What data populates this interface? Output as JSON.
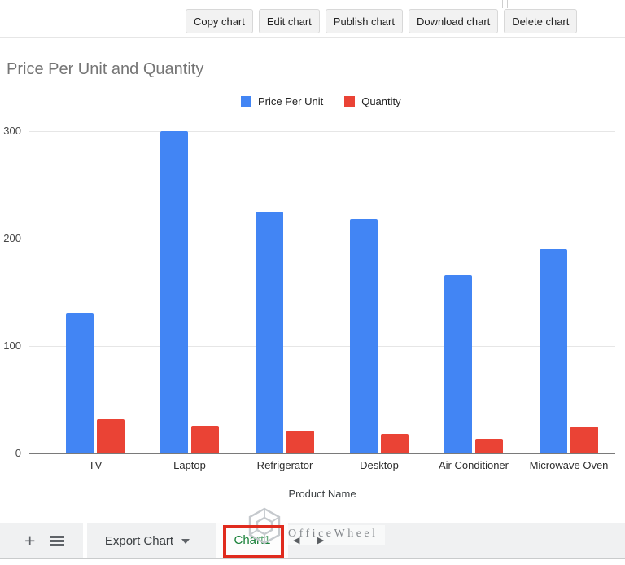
{
  "toolbar": {
    "buttons": [
      "Copy chart",
      "Edit chart",
      "Publish chart",
      "Download chart",
      "Delete chart"
    ]
  },
  "chart_data": {
    "type": "bar",
    "title": "Price Per Unit and Quantity",
    "categories": [
      "TV",
      "Laptop",
      "Refrigerator",
      "Desktop",
      "Air Conditioner",
      "Microwave Oven"
    ],
    "series": [
      {
        "name": "Price Per Unit",
        "color": "#4285f4",
        "values": [
          130,
          300,
          225,
          218,
          166,
          190
        ]
      },
      {
        "name": "Quantity",
        "color": "#ea4335",
        "values": [
          32,
          26,
          21,
          18,
          14,
          25
        ]
      }
    ],
    "xlabel": "Product Name",
    "ylabel": "",
    "y_ticks": [
      0,
      100,
      200,
      300
    ],
    "ylim": [
      0,
      300
    ],
    "grid": true,
    "legend_position": "top-center"
  },
  "sheet_bar": {
    "icons": {
      "add_sheet": "+",
      "prev_arrow": "◀",
      "next_arrow": "▶"
    },
    "tabs": [
      {
        "label": "Export Chart",
        "has_dropdown": true,
        "active": false
      },
      {
        "label": "Chart1",
        "active": true,
        "highlighted": true
      }
    ],
    "annotation_color": "#e02b1e",
    "watermark": {
      "text": "OfficeWheel"
    }
  }
}
